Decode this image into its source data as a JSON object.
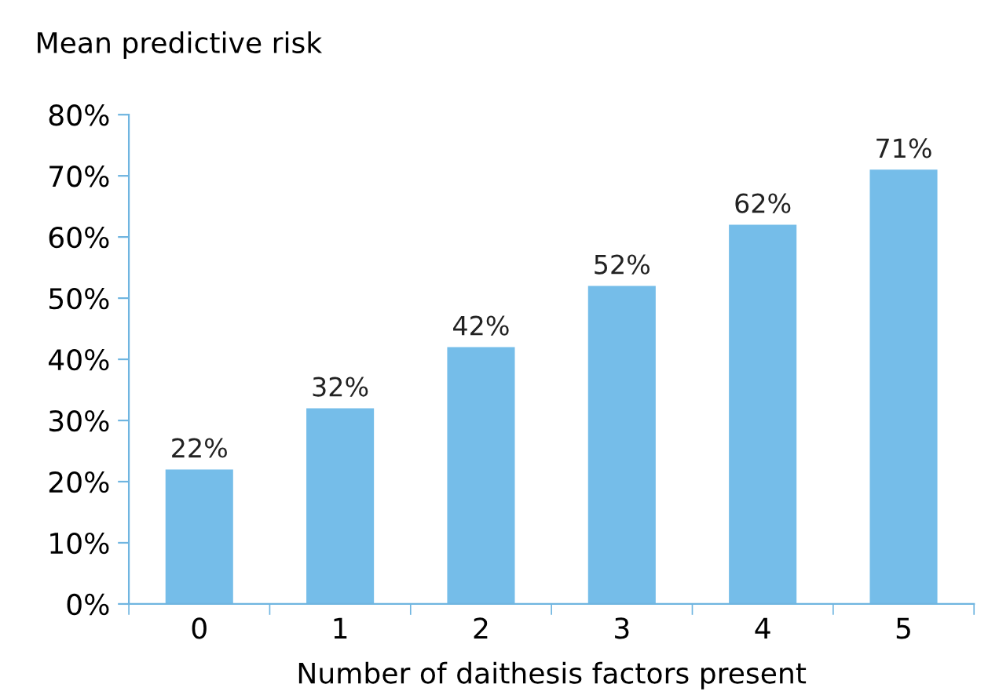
{
  "chart_data": {
    "type": "bar",
    "ylabel": "Mean predictive risk",
    "xlabel": "Number of daithesis factors present",
    "categories": [
      "0",
      "1",
      "2",
      "3",
      "4",
      "5"
    ],
    "values": [
      22,
      32,
      42,
      52,
      62,
      71
    ],
    "value_labels": [
      "22%",
      "32%",
      "42%",
      "52%",
      "62%",
      "71%"
    ],
    "color": "#75bde9",
    "ylim": [
      0,
      80
    ],
    "yticks": [
      {
        "value": 0,
        "label": "0%"
      },
      {
        "value": 10,
        "label": "10%"
      },
      {
        "value": 20,
        "label": "20%"
      },
      {
        "value": 30,
        "label": "30%"
      },
      {
        "value": 40,
        "label": "40%"
      },
      {
        "value": 50,
        "label": "50%"
      },
      {
        "value": 60,
        "label": "60%"
      },
      {
        "value": 70,
        "label": "70%"
      },
      {
        "value": 80,
        "label": "80%"
      }
    ],
    "grid": false,
    "legend": false
  }
}
